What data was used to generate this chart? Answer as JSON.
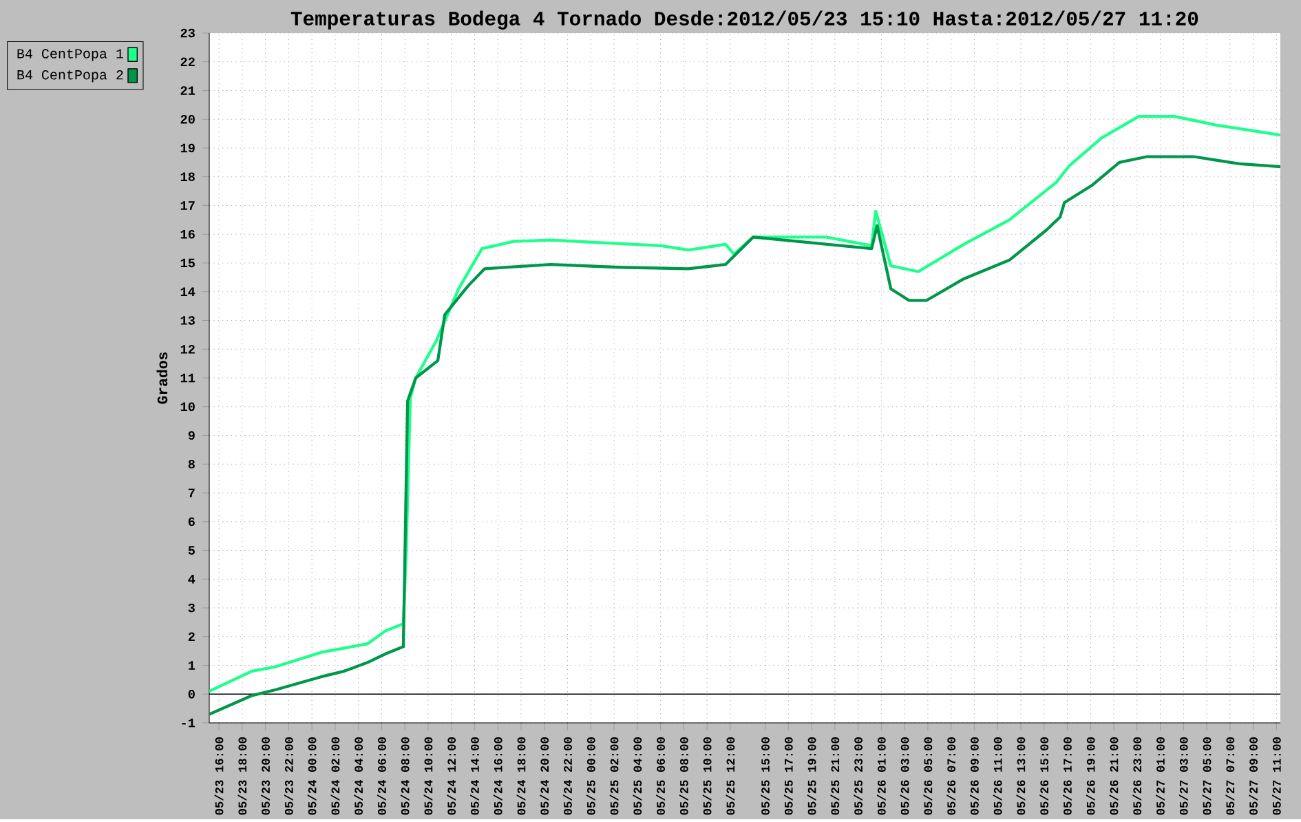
{
  "chart_data": {
    "type": "line",
    "title": "Temperaturas Bodega 4 Tornado Desde:2012/05/23 15:10 Hasta:2012/05/27 11:20",
    "ylabel": "Grados",
    "xlim": [
      "2012-05-23T15:10",
      "2012-05-27T11:20"
    ],
    "ylim": [
      -1,
      23
    ],
    "yticks": [
      -1,
      0,
      1,
      2,
      3,
      4,
      5,
      6,
      7,
      8,
      9,
      10,
      11,
      12,
      13,
      14,
      15,
      16,
      17,
      18,
      19,
      20,
      21,
      22,
      23
    ],
    "xticks": [
      {
        "value": "2012-05-23T16:00",
        "label": "05/23 16:00"
      },
      {
        "value": "2012-05-23T18:00",
        "label": "05/23 18:00"
      },
      {
        "value": "2012-05-23T20:00",
        "label": "05/23 20:00"
      },
      {
        "value": "2012-05-23T22:00",
        "label": "05/23 22:00"
      },
      {
        "value": "2012-05-24T00:00",
        "label": "05/24 00:00"
      },
      {
        "value": "2012-05-24T02:00",
        "label": "05/24 02:00"
      },
      {
        "value": "2012-05-24T04:00",
        "label": "05/24 04:00"
      },
      {
        "value": "2012-05-24T06:00",
        "label": "05/24 06:00"
      },
      {
        "value": "2012-05-24T08:00",
        "label": "05/24 08:00"
      },
      {
        "value": "2012-05-24T10:00",
        "label": "05/24 10:00"
      },
      {
        "value": "2012-05-24T12:00",
        "label": "05/24 12:00"
      },
      {
        "value": "2012-05-24T14:00",
        "label": "05/24 14:00"
      },
      {
        "value": "2012-05-24T16:00",
        "label": "05/24 16:00"
      },
      {
        "value": "2012-05-24T18:00",
        "label": "05/24 18:00"
      },
      {
        "value": "2012-05-24T20:00",
        "label": "05/24 20:00"
      },
      {
        "value": "2012-05-24T22:00",
        "label": "05/24 22:00"
      },
      {
        "value": "2012-05-25T00:00",
        "label": "05/25 00:00"
      },
      {
        "value": "2012-05-25T02:00",
        "label": "05/25 02:00"
      },
      {
        "value": "2012-05-25T04:00",
        "label": "05/25 04:00"
      },
      {
        "value": "2012-05-25T06:00",
        "label": "05/25 06:00"
      },
      {
        "value": "2012-05-25T08:00",
        "label": "05/25 08:00"
      },
      {
        "value": "2012-05-25T10:00",
        "label": "05/25 10:00"
      },
      {
        "value": "2012-05-25T12:00",
        "label": "05/25 12:00"
      },
      {
        "value": "2012-05-25T15:00",
        "label": "05/25 15:00"
      },
      {
        "value": "2012-05-25T17:00",
        "label": "05/25 17:00"
      },
      {
        "value": "2012-05-25T19:00",
        "label": "05/25 19:00"
      },
      {
        "value": "2012-05-25T21:00",
        "label": "05/25 21:00"
      },
      {
        "value": "2012-05-25T23:00",
        "label": "05/25 23:00"
      },
      {
        "value": "2012-05-26T01:00",
        "label": "05/26 01:00"
      },
      {
        "value": "2012-05-26T03:00",
        "label": "05/26 03:00"
      },
      {
        "value": "2012-05-26T05:00",
        "label": "05/26 05:00"
      },
      {
        "value": "2012-05-26T07:00",
        "label": "05/26 07:00"
      },
      {
        "value": "2012-05-26T09:00",
        "label": "05/26 09:00"
      },
      {
        "value": "2012-05-26T11:00",
        "label": "05/26 11:00"
      },
      {
        "value": "2012-05-26T13:00",
        "label": "05/26 13:00"
      },
      {
        "value": "2012-05-26T15:00",
        "label": "05/26 15:00"
      },
      {
        "value": "2012-05-26T17:00",
        "label": "05/26 17:00"
      },
      {
        "value": "2012-05-26T19:00",
        "label": "05/26 19:00"
      },
      {
        "value": "2012-05-26T21:00",
        "label": "05/26 21:00"
      },
      {
        "value": "2012-05-26T23:00",
        "label": "05/26 23:00"
      },
      {
        "value": "2012-05-27T01:00",
        "label": "05/27 01:00"
      },
      {
        "value": "2012-05-27T03:00",
        "label": "05/27 03:00"
      },
      {
        "value": "2012-05-27T05:00",
        "label": "05/27 05:00"
      },
      {
        "value": "2012-05-27T07:00",
        "label": "05/27 07:00"
      },
      {
        "value": "2012-05-27T09:00",
        "label": "05/27 09:00"
      },
      {
        "value": "2012-05-27T11:00",
        "label": "05/27 11:00"
      }
    ],
    "grid": true,
    "legend": "top left",
    "ref_lines": [
      {
        "axis": "y",
        "value": 0,
        "color": "#000000"
      }
    ],
    "series": [
      {
        "name": "B4 CentPopa 1",
        "color": "#1eff8c",
        "x": [
          "2012-05-23T15:10",
          "2012-05-23T18:50",
          "2012-05-23T20:51",
          "2012-05-24T00:46",
          "2012-05-24T04:47",
          "2012-05-24T06:20",
          "2012-05-24T07:52",
          "2012-05-24T08:07",
          "2012-05-24T08:28",
          "2012-05-24T08:56",
          "2012-05-24T10:43",
          "2012-05-24T12:37",
          "2012-05-24T14:38",
          "2012-05-24T17:21",
          "2012-05-24T20:33",
          "2012-05-25T01:17",
          "2012-05-25T06:02",
          "2012-05-25T08:24",
          "2012-05-25T11:36",
          "2012-05-25T12:19",
          "2012-05-25T13:58",
          "2012-05-25T20:15",
          "2012-05-26T00:10",
          "2012-05-26T00:31",
          "2012-05-26T01:49",
          "2012-05-26T04:11",
          "2012-05-26T08:06",
          "2012-05-26T12:01",
          "2012-05-26T16:02",
          "2012-05-26T17:13",
          "2012-05-26T19:57",
          "2012-05-26T23:09",
          "2012-05-27T02:14",
          "2012-05-27T05:47",
          "2012-05-27T11:20"
        ],
        "values": [
          0.1,
          0.8,
          0.95,
          1.45,
          1.75,
          2.2,
          2.45,
          5,
          10.3,
          11,
          12.3,
          14.1,
          15.5,
          15.75,
          15.8,
          15.7,
          15.6,
          15.45,
          15.65,
          15.3,
          15.9,
          15.9,
          15.6,
          16.8,
          14.9,
          14.7,
          15.65,
          16.5,
          17.8,
          18.4,
          19.35,
          20.1,
          20.1,
          19.8,
          19.45
        ]
      },
      {
        "name": "B4 CentPopa 2",
        "color": "#00964b",
        "x": [
          "2012-05-23T15:10",
          "2012-05-23T18:50",
          "2012-05-23T20:51",
          "2012-05-24T00:46",
          "2012-05-24T02:47",
          "2012-05-24T04:47",
          "2012-05-24T06:20",
          "2012-05-24T07:52",
          "2012-05-24T08:14",
          "2012-05-24T08:56",
          "2012-05-24T10:50",
          "2012-05-24T11:26",
          "2012-05-24T13:26",
          "2012-05-24T14:52",
          "2012-05-24T20:33",
          "2012-05-25T02:28",
          "2012-05-25T08:24",
          "2012-05-25T11:36",
          "2012-05-25T13:58",
          "2012-05-26T00:10",
          "2012-05-26T00:38",
          "2012-05-26T01:49",
          "2012-05-26T03:22",
          "2012-05-26T04:54",
          "2012-05-26T08:06",
          "2012-05-26T12:01",
          "2012-05-26T15:13",
          "2012-05-26T16:23",
          "2012-05-26T16:45",
          "2012-05-26T19:07",
          "2012-05-26T21:29",
          "2012-05-26T23:52",
          "2012-05-27T03:53",
          "2012-05-27T07:48",
          "2012-05-27T11:20"
        ],
        "values": [
          -0.7,
          -0.05,
          0.15,
          0.6,
          0.8,
          1.1,
          1.4,
          1.65,
          10.2,
          11,
          11.6,
          13.2,
          14.2,
          14.8,
          14.95,
          14.85,
          14.8,
          14.95,
          15.9,
          15.5,
          16.3,
          14.1,
          13.7,
          13.7,
          14.45,
          15.1,
          16.15,
          16.6,
          17.1,
          17.7,
          18.5,
          18.7,
          18.7,
          18.45,
          18.35
        ]
      }
    ]
  }
}
